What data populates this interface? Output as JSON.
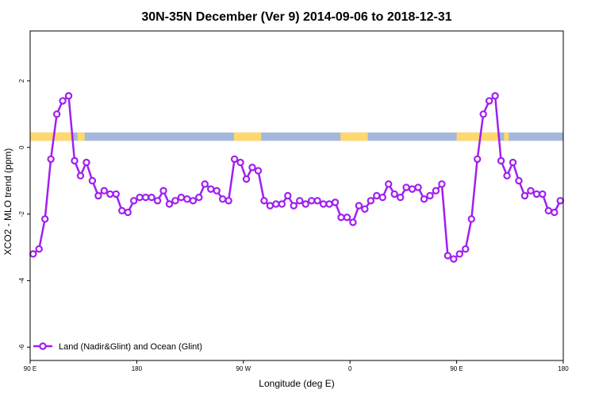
{
  "chart_data": {
    "type": "line",
    "title": "30N-35N December (Ver 9)   2014-09-06 to 2018-12-31",
    "xlabel": "Longitude (deg E)",
    "ylabel": "XCO2 - MLO trend (ppm)",
    "xlim": [
      90,
      540
    ],
    "ylim": [
      -6.4,
      3.5
    ],
    "x_ticks": [
      {
        "value": 90,
        "label": "90 E"
      },
      {
        "value": 180,
        "label": "180"
      },
      {
        "value": 270,
        "label": "90 W"
      },
      {
        "value": 360,
        "label": "0"
      },
      {
        "value": 450,
        "label": "90 E"
      },
      {
        "value": 540,
        "label": "180"
      }
    ],
    "y_ticks": [
      2,
      0,
      -2,
      -4,
      -6
    ],
    "legend": {
      "position": "bottom-left",
      "label": "Land (Nadir&Glint) and Ocean (Glint)"
    },
    "colors": {
      "series": "#a020f0",
      "land": "#ffd86e",
      "ocean": "#a4b8dc"
    },
    "series": [
      {
        "name": "Land (Nadir&Glint) and Ocean (Glint)",
        "x": [
          92.5,
          97.5,
          102.5,
          107.5,
          112.5,
          117.5,
          122.5,
          127.5,
          132.5,
          137.5,
          142.5,
          147.5,
          152.5,
          157.5,
          162.5,
          167.5,
          172.5,
          177.5,
          182.5,
          187.5,
          192.5,
          197.5,
          202.5,
          207.5,
          212.5,
          217.5,
          222.5,
          227.5,
          232.5,
          237.5,
          242.5,
          247.5,
          252.5,
          257.5,
          262.5,
          267.5,
          272.5,
          277.5,
          282.5,
          287.5,
          292.5,
          297.5,
          302.5,
          307.5,
          312.5,
          317.5,
          322.5,
          327.5,
          332.5,
          337.5,
          342.5,
          347.5,
          352.5,
          357.5,
          362.5,
          367.5,
          372.5,
          377.5,
          382.5,
          387.5,
          392.5,
          397.5,
          402.5,
          407.5,
          412.5,
          417.5,
          422.5,
          427.5,
          432.5,
          437.5,
          442.5,
          447.5,
          452.5,
          457.5,
          462.5,
          467.5,
          472.5,
          477.5,
          482.5,
          487.5,
          492.5,
          497.5,
          502.5,
          507.5,
          512.5,
          517.5,
          522.5,
          527.5,
          532.5,
          537.5
        ],
        "values": [
          -3.2,
          -3.05,
          -2.15,
          -0.35,
          1.0,
          1.4,
          1.55,
          -0.4,
          -0.85,
          -0.45,
          -1.0,
          -1.45,
          -1.3,
          -1.4,
          -1.4,
          -1.9,
          -1.95,
          -1.6,
          -1.5,
          -1.5,
          -1.5,
          -1.6,
          -1.3,
          -1.7,
          -1.6,
          -1.5,
          -1.55,
          -1.6,
          -1.5,
          -1.1,
          -1.25,
          -1.3,
          -1.55,
          -1.6,
          -0.35,
          -0.45,
          -0.95,
          -0.6,
          -0.7,
          -1.6,
          -1.75,
          -1.7,
          -1.7,
          -1.45,
          -1.75,
          -1.6,
          -1.7,
          -1.6,
          -1.6,
          -1.7,
          -1.7,
          -1.65,
          -2.1,
          -2.1,
          -2.25,
          -1.75,
          -1.85,
          -1.6,
          -1.45,
          -1.5,
          -1.1,
          -1.4,
          -1.5,
          -1.2,
          -1.25,
          -1.2,
          -1.55,
          -1.45,
          -1.3,
          -1.1,
          -3.25,
          -3.35,
          -3.2,
          -3.05,
          -2.15,
          -0.35,
          1.0,
          1.4,
          1.55,
          -0.4,
          -0.85,
          -0.45,
          -1.0,
          -1.45,
          -1.3,
          -1.4,
          -1.4,
          -1.9,
          -1.95,
          -1.6
        ]
      }
    ],
    "background_band": {
      "y_range": [
        0.2,
        0.45
      ],
      "land_ranges": [
        [
          90,
          125
        ],
        [
          130,
          136
        ],
        [
          262,
          285
        ],
        [
          352,
          375
        ],
        [
          450,
          485
        ],
        [
          490,
          494
        ]
      ]
    }
  }
}
